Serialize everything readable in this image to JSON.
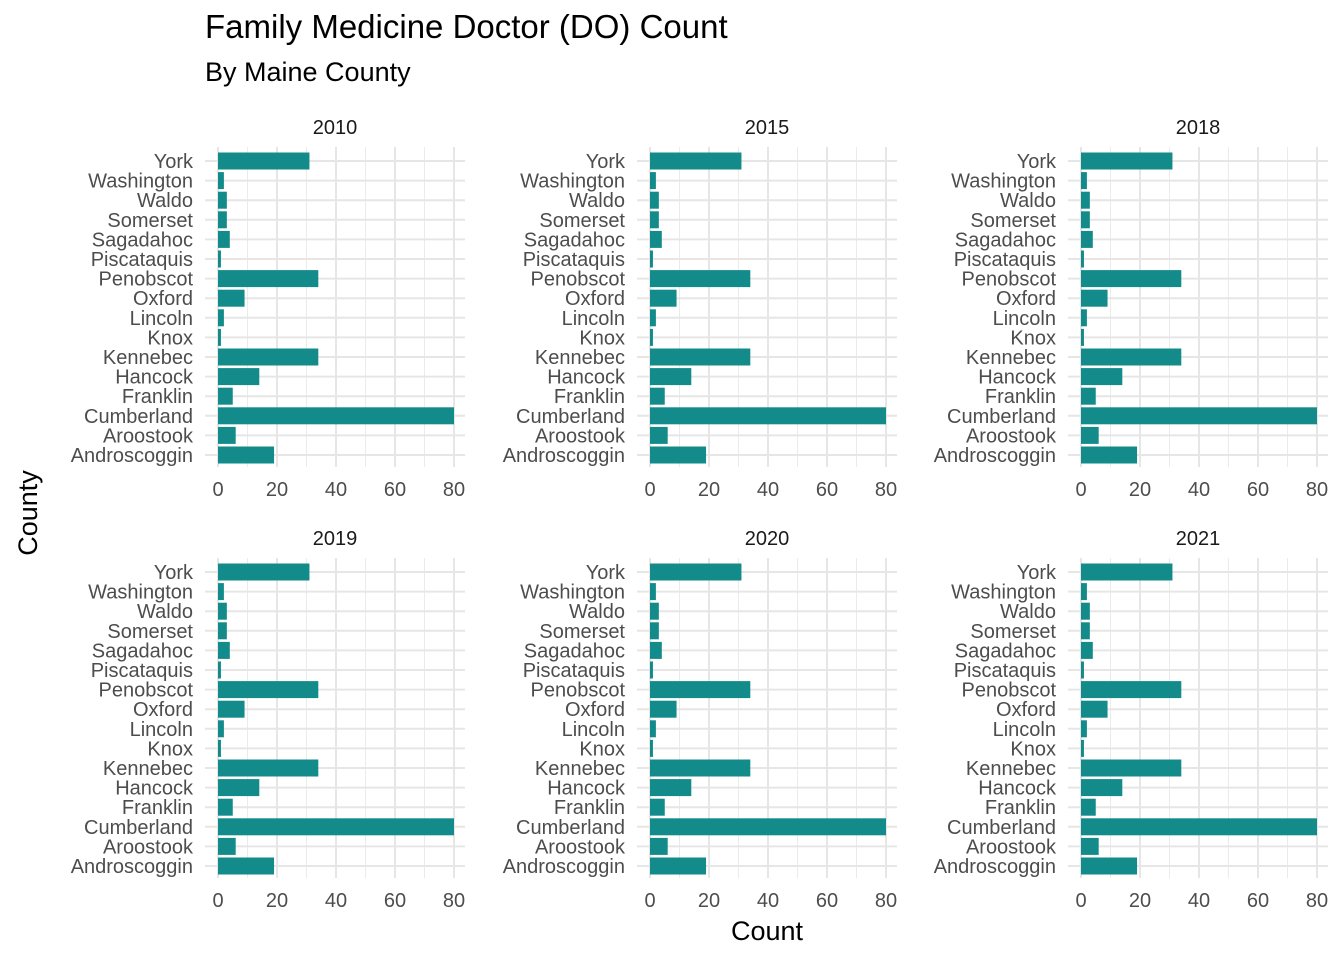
{
  "chart_data": {
    "type": "bar",
    "orientation": "horizontal",
    "title": "Family Medicine Doctor (DO) Count",
    "subtitle": "By Maine County",
    "xlabel": "Count",
    "ylabel": "County",
    "xlim": [
      0,
      80
    ],
    "x_ticks": [
      0,
      20,
      40,
      60,
      80
    ],
    "grid": true,
    "bar_color": "#138b8a",
    "categories": [
      "Androscoggin",
      "Aroostook",
      "Cumberland",
      "Franklin",
      "Hancock",
      "Kennebec",
      "Knox",
      "Lincoln",
      "Oxford",
      "Penobscot",
      "Piscataquis",
      "Sagadahoc",
      "Somerset",
      "Waldo",
      "Washington",
      "York"
    ],
    "facets": [
      {
        "name": "2010",
        "values": [
          19,
          6,
          80,
          5,
          14,
          34,
          1,
          2,
          9,
          34,
          1,
          4,
          3,
          3,
          2,
          31
        ]
      },
      {
        "name": "2015",
        "values": [
          19,
          6,
          80,
          5,
          14,
          34,
          1,
          2,
          9,
          34,
          1,
          4,
          3,
          3,
          2,
          31
        ]
      },
      {
        "name": "2018",
        "values": [
          19,
          6,
          80,
          5,
          14,
          34,
          1,
          2,
          9,
          34,
          1,
          4,
          3,
          3,
          2,
          31
        ]
      },
      {
        "name": "2019",
        "values": [
          19,
          6,
          80,
          5,
          14,
          34,
          1,
          2,
          9,
          34,
          1,
          4,
          3,
          3,
          2,
          31
        ]
      },
      {
        "name": "2020",
        "values": [
          19,
          6,
          80,
          5,
          14,
          34,
          1,
          2,
          9,
          34,
          1,
          4,
          3,
          3,
          2,
          31
        ]
      },
      {
        "name": "2021",
        "values": [
          19,
          6,
          80,
          5,
          14,
          34,
          1,
          2,
          9,
          34,
          1,
          4,
          3,
          3,
          2,
          31
        ]
      }
    ]
  }
}
